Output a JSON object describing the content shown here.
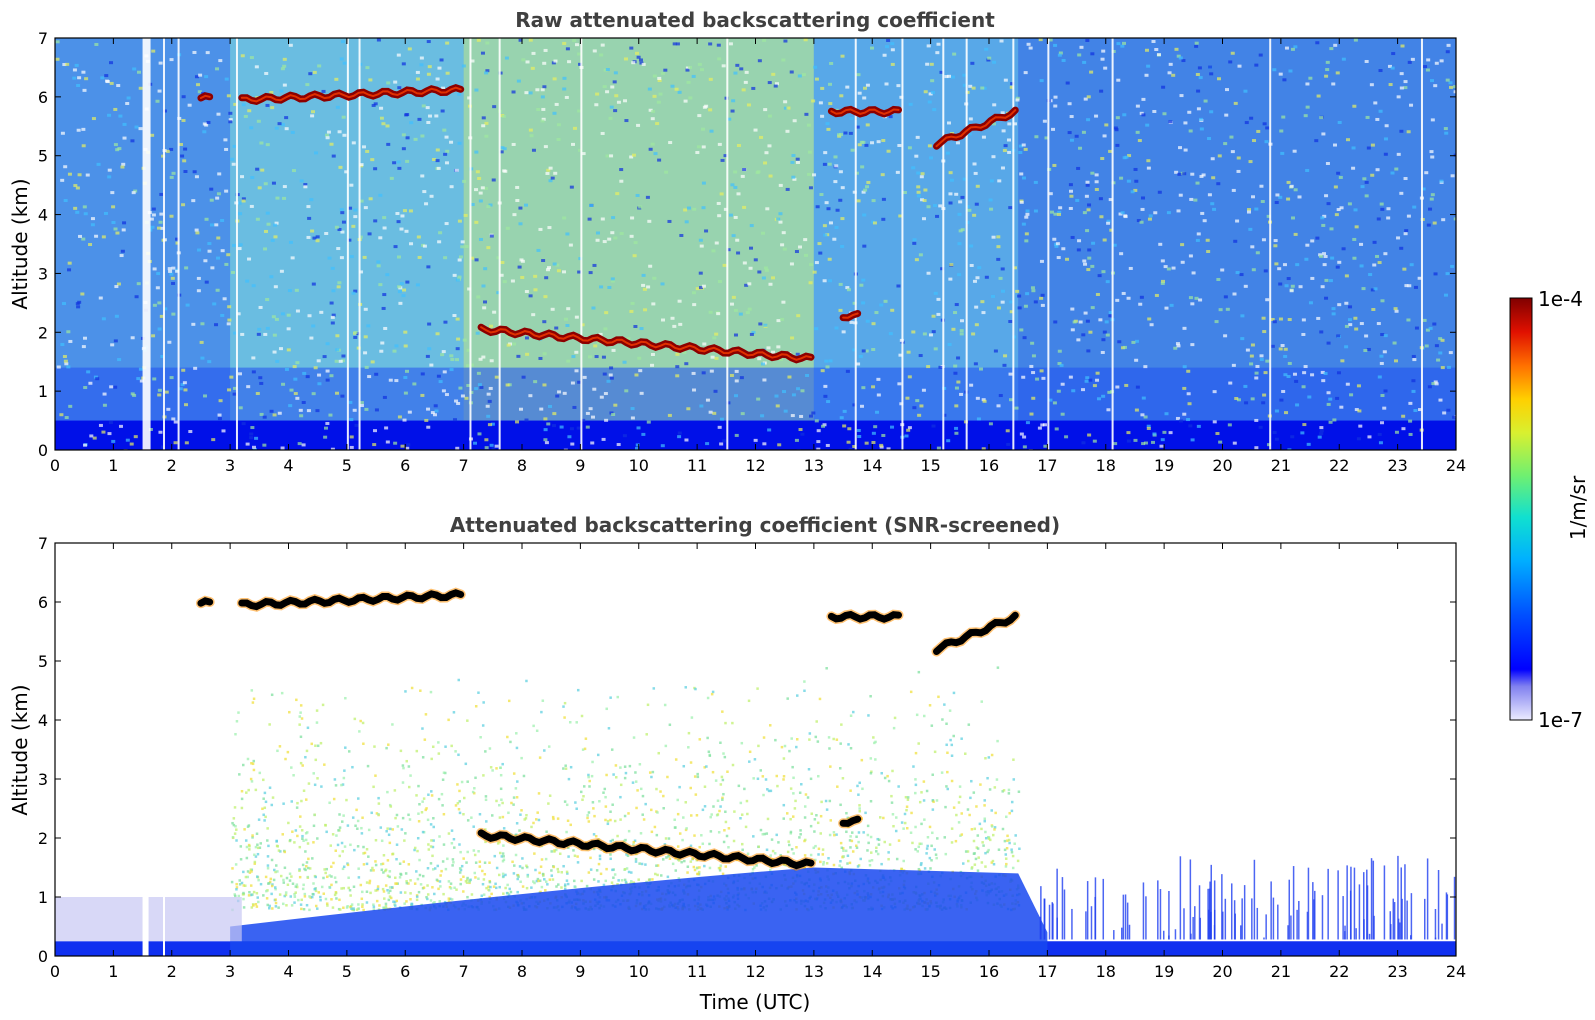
{
  "chart_data": [
    {
      "type": "heatmap",
      "title": "Raw attenuated backscattering coefficient",
      "xlabel": "",
      "ylabel": "Altitude (km)",
      "xlim": [
        0,
        24
      ],
      "ylim": [
        0,
        7
      ],
      "x_ticks": [
        "0",
        "1",
        "2",
        "3",
        "4",
        "5",
        "6",
        "7",
        "8",
        "9",
        "10",
        "11",
        "12",
        "13",
        "14",
        "15",
        "16",
        "17",
        "18",
        "19",
        "20",
        "21",
        "22",
        "23",
        "24"
      ],
      "y_ticks": [
        "0",
        "1",
        "2",
        "3",
        "4",
        "5",
        "6",
        "7"
      ],
      "layers": [
        {
          "t_start": 2.5,
          "t_end": 2.65,
          "alt_km": 5.98
        },
        {
          "t_start": 3.2,
          "t_end": 6.95,
          "alt_km_start": 5.95,
          "alt_km_end": 6.12
        },
        {
          "t_start": 7.3,
          "t_end": 12.95,
          "alt_km_start": 2.05,
          "alt_km_end": 1.55
        },
        {
          "t_start": 13.3,
          "t_end": 14.45,
          "alt_km": 5.75
        },
        {
          "t_start": 13.5,
          "t_end": 13.75,
          "alt_km": 2.28
        },
        {
          "t_start": 15.1,
          "t_end": 16.45,
          "alt_km_start": 5.2,
          "alt_km_end": 5.75
        }
      ]
    },
    {
      "type": "heatmap",
      "title": "Attenuated backscattering coefficient (SNR-screened)",
      "xlabel": "Time (UTC)",
      "ylabel": "Altitude (km)",
      "xlim": [
        0,
        24
      ],
      "ylim": [
        0,
        7
      ],
      "x_ticks": [
        "0",
        "1",
        "2",
        "3",
        "4",
        "5",
        "6",
        "7",
        "8",
        "9",
        "10",
        "11",
        "12",
        "13",
        "14",
        "15",
        "16",
        "17",
        "18",
        "19",
        "20",
        "21",
        "22",
        "23",
        "24"
      ],
      "y_ticks": [
        "0",
        "1",
        "2",
        "3",
        "4",
        "5",
        "6",
        "7"
      ]
    }
  ],
  "colorbar": {
    "min_label": "1e-7",
    "max_label": "1e-4",
    "unit_label": "1/m/sr",
    "colormap": [
      "#ffffff",
      "#0000e0",
      "#0000ff",
      "#0060ff",
      "#00c0ff",
      "#20e0c0",
      "#80f080",
      "#e0f040",
      "#ffd000",
      "#ff8000",
      "#ff2000",
      "#c00000",
      "#800000"
    ]
  }
}
